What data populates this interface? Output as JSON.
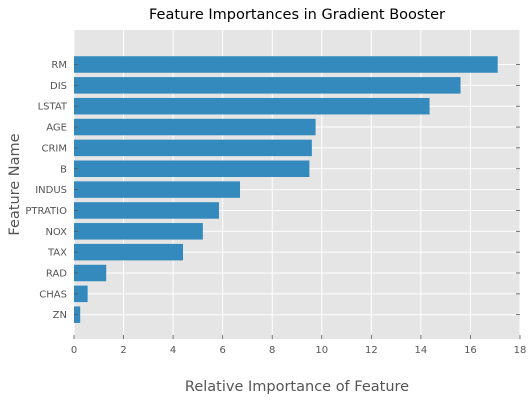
{
  "chart_data": {
    "type": "bar",
    "orientation": "horizontal",
    "title": "Feature Importances in Gradient Booster",
    "xlabel": "Relative Importance of Feature",
    "ylabel": "Feature Name",
    "xlim": [
      0,
      18
    ],
    "x_ticks": [
      0,
      2,
      4,
      6,
      8,
      10,
      12,
      14,
      16,
      18
    ],
    "grid": true,
    "categories": [
      "RM",
      "DIS",
      "LSTAT",
      "AGE",
      "CRIM",
      "B",
      "INDUS",
      "PTRATIO",
      "NOX",
      "TAX",
      "RAD",
      "CHAS",
      "ZN"
    ],
    "values": [
      17.1,
      15.6,
      14.35,
      9.75,
      9.6,
      9.5,
      6.7,
      5.85,
      5.2,
      4.4,
      1.3,
      0.55,
      0.25
    ],
    "colors": {
      "bar": "#348abd",
      "background": "#e5e5e5",
      "grid": "#ffffff"
    }
  }
}
